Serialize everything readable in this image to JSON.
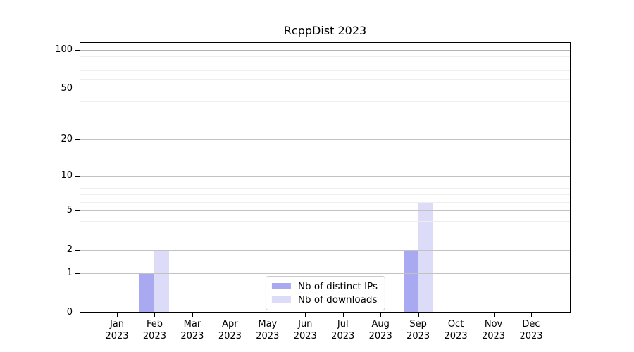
{
  "chart_data": {
    "type": "bar",
    "title": "RcppDist 2023",
    "x_axis": {
      "months": [
        "Jan",
        "Feb",
        "Mar",
        "Apr",
        "May",
        "Jun",
        "Jul",
        "Aug",
        "Sep",
        "Oct",
        "Nov",
        "Dec"
      ],
      "year": "2023"
    },
    "y_axis": {
      "scale": "log1p",
      "tick_values": [
        100,
        50,
        20,
        10,
        5,
        2,
        1,
        0
      ],
      "range": [
        0,
        115
      ]
    },
    "gridlines": {
      "major": [
        1,
        2,
        5,
        10,
        20,
        50,
        100
      ],
      "minor": [
        3,
        4,
        6,
        7,
        8,
        9,
        30,
        40,
        60,
        70,
        80,
        90
      ]
    },
    "series": [
      {
        "name": "Nb of distinct IPs",
        "color": "#a9a9f2",
        "values": [
          0,
          1,
          0,
          0,
          0,
          0,
          0,
          0,
          2,
          0,
          0,
          0
        ]
      },
      {
        "name": "Nb of downloads",
        "color": "#dcdcf8",
        "values": [
          0,
          2,
          0,
          0,
          0,
          0,
          0,
          0,
          6,
          0,
          0,
          0
        ]
      }
    ],
    "legend": {
      "position": "lower center",
      "labels": [
        "Nb of distinct IPs",
        "Nb of downloads"
      ]
    },
    "colors": {
      "grid_major": "#c2c2c2",
      "grid_top": "#b3b3b3",
      "grid_minor": "#eeeeee",
      "frame": "#000000",
      "legend_border": "#cccccc",
      "background": "#ffffff",
      "text": "#000000"
    }
  }
}
